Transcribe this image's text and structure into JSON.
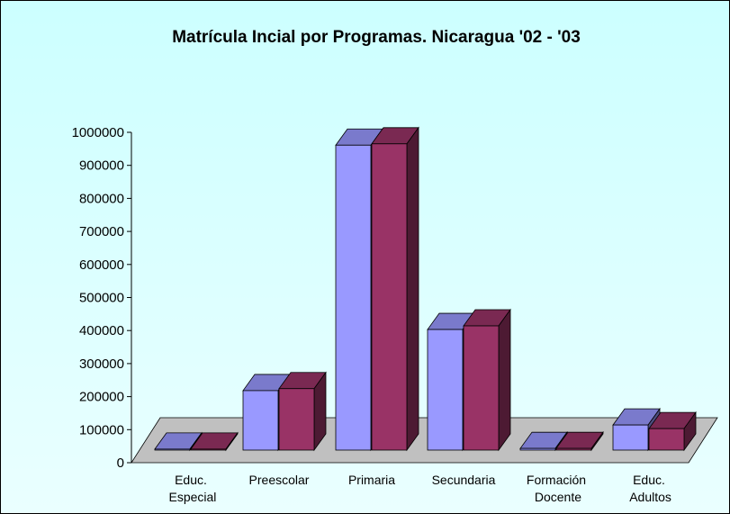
{
  "chart_data": {
    "type": "bar3d",
    "title": "Matrícula Incial por Programas. Nicaragua '02 - '03",
    "categories": [
      "Educ. Especial",
      "Preescolar",
      "Primaria",
      "Secundaria",
      "Formación Docente",
      "Educ. Adultos"
    ],
    "series": [
      {
        "color": "#9999ff",
        "values": [
          3000,
          180000,
          923000,
          365000,
          5000,
          76000
        ]
      },
      {
        "color": "#993366",
        "values": [
          3000,
          186000,
          927000,
          376000,
          5000,
          65000
        ]
      }
    ],
    "ylim": [
      0,
      1000000
    ],
    "yticks": [
      0,
      100000,
      200000,
      300000,
      400000,
      500000,
      600000,
      700000,
      800000,
      900000,
      1000000
    ]
  }
}
